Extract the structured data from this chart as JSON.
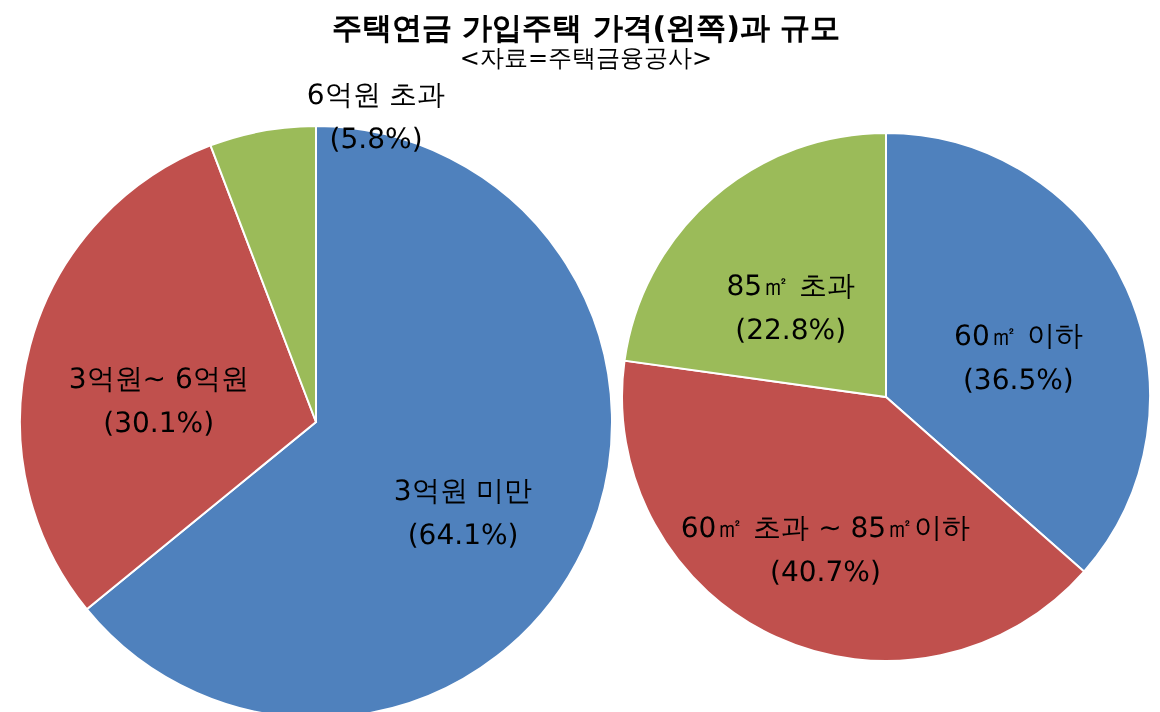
{
  "chart_data": [
    {
      "type": "pie",
      "title": "주택연금 가입주택 가격(왼쪽)과 규모",
      "subtitle": "<자료=주택금융공사>",
      "categories": [
        "3억원 미만",
        "3억원~ 6억원",
        "6억원 초과"
      ],
      "values": [
        64.1,
        30.1,
        5.8
      ],
      "value_labels": [
        "(64.1%)",
        "(30.1%)",
        "(5.8%)"
      ],
      "colors": [
        "#4f81bd",
        "#c0504d",
        "#9bbb59"
      ]
    },
    {
      "type": "pie",
      "categories": [
        "60㎡ 이하",
        "60㎡ 초과 ~ 85㎡이하",
        "85㎡ 초과"
      ],
      "values": [
        36.5,
        40.7,
        22.8
      ],
      "value_labels": [
        "(36.5%)",
        "(40.7%)",
        "(22.8%)"
      ],
      "colors": [
        "#4f81bd",
        "#c0504d",
        "#9bbb59"
      ]
    }
  ]
}
